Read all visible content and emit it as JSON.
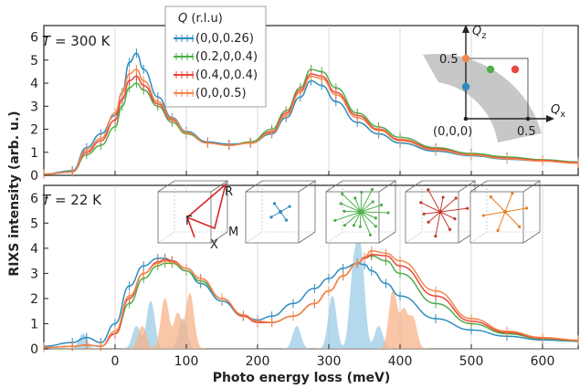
{
  "chart_data": [
    {
      "panel": "top",
      "type": "line",
      "title": "T = 300 K",
      "title_var": "T",
      "title_rest": " = 300 K",
      "xlabel": "Photo energy loss (meV)",
      "ylabel": "RIXS intensity (arb. u.)",
      "xlim": [
        -100,
        650
      ],
      "ylim": [
        0,
        6.5
      ],
      "x_ticks": [
        0,
        100,
        200,
        300,
        400,
        500,
        600
      ],
      "y_ticks": [
        0,
        1,
        2,
        3,
        4,
        5,
        6
      ],
      "legend": {
        "title_var": "Q",
        "title_rest": " (r.l.u)",
        "position": "top-center",
        "entries": [
          "(0,0,0.26)",
          "(0.2,0,0.4)",
          "(0.4,0,0.4)",
          "(0,0,0.5)"
        ]
      },
      "x": [
        -100,
        -60,
        -40,
        -20,
        0,
        10,
        20,
        30,
        40,
        60,
        80,
        100,
        130,
        160,
        190,
        220,
        240,
        260,
        275,
        290,
        310,
        340,
        370,
        400,
        450,
        500,
        550,
        600,
        650
      ],
      "series": [
        {
          "name": "(0,0,0.26)",
          "color": "#2b8cbe",
          "values": [
            0.05,
            0.2,
            1.2,
            1.8,
            2.6,
            3.6,
            4.9,
            5.3,
            4.6,
            3.4,
            2.5,
            1.9,
            1.45,
            1.35,
            1.4,
            1.8,
            2.5,
            3.4,
            4.1,
            3.9,
            3.2,
            2.3,
            1.8,
            1.4,
            1.05,
            0.85,
            0.7,
            0.62,
            0.55
          ]
        },
        {
          "name": "(0.2,0,0.4)",
          "color": "#4daf4a",
          "values": [
            0.05,
            0.15,
            0.9,
            1.3,
            2.1,
            3.0,
            3.8,
            4.0,
            3.7,
            3.0,
            2.3,
            1.8,
            1.4,
            1.3,
            1.45,
            2.0,
            2.8,
            3.8,
            4.6,
            4.5,
            3.8,
            2.7,
            2.1,
            1.65,
            1.2,
            0.95,
            0.8,
            0.68,
            0.58
          ]
        },
        {
          "name": "(0.4,0,0.4)",
          "color": "#e8453c",
          "values": [
            0.05,
            0.15,
            1.0,
            1.5,
            2.4,
            3.3,
            4.1,
            4.3,
            3.9,
            3.1,
            2.4,
            1.85,
            1.4,
            1.3,
            1.4,
            1.9,
            2.7,
            3.7,
            4.4,
            4.3,
            3.6,
            2.6,
            2.0,
            1.55,
            1.15,
            0.9,
            0.75,
            0.65,
            0.55
          ]
        },
        {
          "name": "(0,0,0.5)",
          "color": "#f4874b",
          "values": [
            0.05,
            0.15,
            1.1,
            1.6,
            2.7,
            3.6,
            4.4,
            4.6,
            4.1,
            3.2,
            2.45,
            1.85,
            1.4,
            1.3,
            1.4,
            1.85,
            2.6,
            3.6,
            4.3,
            4.2,
            3.5,
            2.5,
            1.95,
            1.5,
            1.1,
            0.88,
            0.72,
            0.62,
            0.52
          ]
        }
      ],
      "inset": {
        "x_label_var": "Q",
        "x_label_sub": "x",
        "z_label_var": "Q",
        "z_label_sub": "z",
        "tick_z": "0.5",
        "tick_x": "0.5",
        "origin": "(0,0,0)",
        "points": [
          {
            "qx": 0.0,
            "qz": 0.26,
            "color": "#2b8cbe"
          },
          {
            "qx": 0.2,
            "qz": 0.4,
            "color": "#4daf4a"
          },
          {
            "qx": 0.4,
            "qz": 0.4,
            "color": "#e8453c"
          },
          {
            "qx": 0.0,
            "qz": 0.5,
            "color": "#f4874b"
          }
        ]
      }
    },
    {
      "panel": "bottom",
      "type": "line",
      "title": "T = 22 K",
      "title_var": "T",
      "title_rest": " = 22 K",
      "xlim": [
        -100,
        650
      ],
      "ylim": [
        0,
        6.5
      ],
      "y_ticks": [
        0,
        1,
        2,
        3,
        4,
        5,
        6
      ],
      "x": [
        -100,
        -60,
        -40,
        -20,
        0,
        20,
        40,
        60,
        70,
        80,
        100,
        120,
        150,
        180,
        200,
        220,
        250,
        280,
        300,
        320,
        340,
        350,
        360,
        380,
        400,
        450,
        500,
        550,
        600,
        650
      ],
      "series": [
        {
          "name": "(0,0,0.26)",
          "color": "#2b8cbe",
          "values": [
            0.1,
            0.25,
            0.45,
            0.25,
            1.0,
            2.5,
            3.3,
            3.6,
            3.6,
            3.5,
            3.1,
            2.6,
            1.9,
            1.3,
            1.15,
            1.3,
            1.8,
            2.4,
            2.8,
            3.2,
            3.4,
            3.35,
            3.1,
            2.6,
            2.1,
            1.2,
            0.75,
            0.5,
            0.35,
            0.3
          ]
        },
        {
          "name": "(0.2,0,0.4)",
          "color": "#4daf4a",
          "values": [
            0.05,
            0.1,
            0.15,
            0.1,
            0.6,
            1.8,
            2.8,
            3.3,
            3.4,
            3.4,
            3.1,
            2.7,
            2.0,
            1.3,
            1.05,
            1.05,
            1.3,
            1.8,
            2.3,
            2.9,
            3.4,
            3.6,
            3.7,
            3.5,
            3.0,
            1.8,
            1.0,
            0.6,
            0.4,
            0.32
          ]
        },
        {
          "name": "(0.4,0,0.4)",
          "color": "#e8453c",
          "values": [
            0.05,
            0.1,
            0.15,
            0.1,
            0.6,
            2.0,
            3.0,
            3.45,
            3.55,
            3.5,
            3.2,
            2.8,
            2.0,
            1.3,
            1.05,
            1.05,
            1.3,
            1.8,
            2.3,
            2.9,
            3.4,
            3.6,
            3.75,
            3.7,
            3.3,
            2.1,
            1.1,
            0.65,
            0.42,
            0.33
          ]
        },
        {
          "name": "(0,0,0.5)",
          "color": "#f4874b",
          "values": [
            0.05,
            0.1,
            0.15,
            0.1,
            0.7,
            2.1,
            3.0,
            3.4,
            3.5,
            3.45,
            3.2,
            2.8,
            2.0,
            1.35,
            1.1,
            1.05,
            1.3,
            1.8,
            2.3,
            2.9,
            3.4,
            3.65,
            3.9,
            3.8,
            3.5,
            2.3,
            1.2,
            0.7,
            0.45,
            0.35
          ]
        }
      ],
      "phonon_peaks": {
        "blue": {
          "color": "#9ccde8",
          "centers": [
            -45,
            30,
            50,
            95,
            255,
            305,
            335,
            345,
            370
          ],
          "heights": [
            0.6,
            0.9,
            1.9,
            1.2,
            0.9,
            2.1,
            3.0,
            3.5,
            0.9
          ]
        },
        "orange": {
          "color": "#f7b48a",
          "centers": [
            38,
            70,
            88,
            105,
            390,
            405,
            418
          ],
          "heights": [
            0.9,
            2.0,
            1.4,
            2.2,
            2.3,
            1.5,
            1.2
          ]
        }
      },
      "bz_labels": {
        "gamma": "Γ",
        "r": "R",
        "m": "M",
        "x": "X"
      }
    }
  ]
}
